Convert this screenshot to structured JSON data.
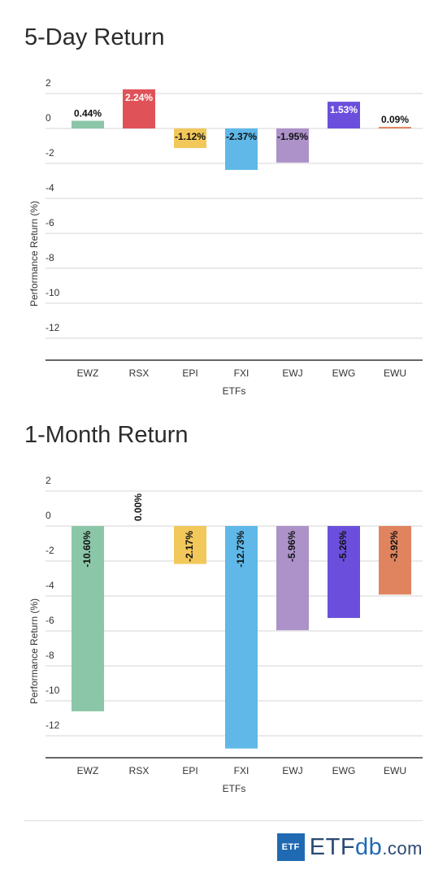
{
  "chart_data": [
    {
      "type": "bar",
      "title": "5-Day Return",
      "xlabel": "ETFs",
      "ylabel": "Performance Return (%)",
      "categories": [
        "EWZ",
        "RSX",
        "EPI",
        "FXI",
        "EWJ",
        "EWG",
        "EWU"
      ],
      "values": [
        0.44,
        2.24,
        -1.12,
        -2.37,
        -1.95,
        1.53,
        0.09
      ],
      "data_labels": [
        "0.44%",
        "2.24%",
        "-1.12%",
        "-2.37%",
        "-1.95%",
        "1.53%",
        "0.09%"
      ],
      "colors": [
        "#8cc6a8",
        "#df5358",
        "#f2c85b",
        "#5fb8e8",
        "#ac92c9",
        "#6b4fdc",
        "#e0845f"
      ],
      "ylim": [
        -13,
        2.5
      ],
      "yticks": [
        2,
        0,
        -2,
        -4,
        -6,
        -8,
        -10,
        -12
      ],
      "grid": true,
      "label_rotation": 0
    },
    {
      "type": "bar",
      "title": "1-Month Return",
      "xlabel": "ETFs",
      "ylabel": "Performance Return (%)",
      "categories": [
        "EWZ",
        "RSX",
        "EPI",
        "FXI",
        "EWJ",
        "EWG",
        "EWU"
      ],
      "values": [
        -10.6,
        0.0,
        -2.17,
        -12.73,
        -5.96,
        -5.26,
        -3.92
      ],
      "data_labels": [
        "-10.60%",
        "0.00%",
        "-2.17%",
        "-12.73%",
        "-5.96%",
        "-5.26%",
        "-3.92%"
      ],
      "colors": [
        "#8cc6a8",
        "#df5358",
        "#f2c85b",
        "#5fb8e8",
        "#ac92c9",
        "#6b4fdc",
        "#e0845f"
      ],
      "ylim": [
        -13,
        2.5
      ],
      "yticks": [
        2,
        0,
        -2,
        -4,
        -6,
        -8,
        -10,
        -12
      ],
      "grid": true,
      "label_rotation": -90
    }
  ],
  "branding": {
    "logo_badge": "ETF",
    "logo_etf": "ETF",
    "logo_db": "db",
    "logo_com": ".com"
  }
}
